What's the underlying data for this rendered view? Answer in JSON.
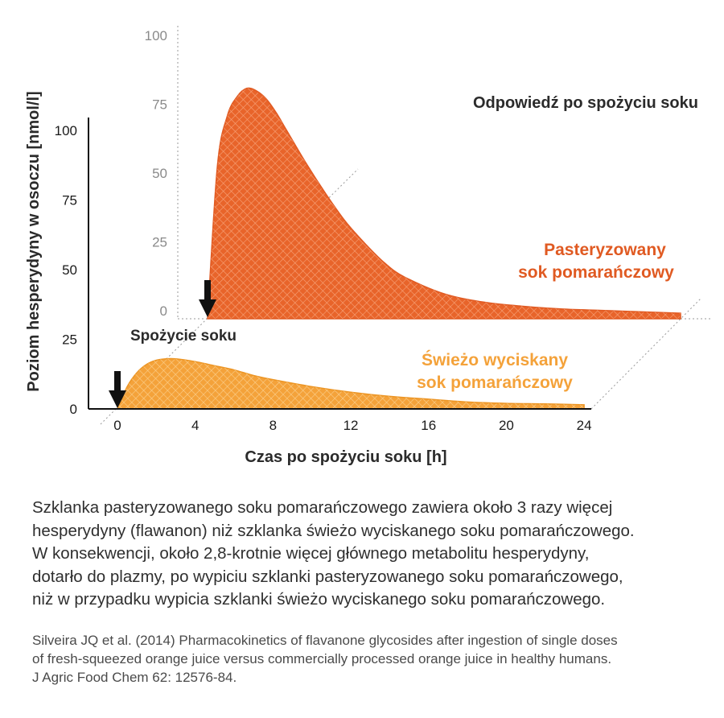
{
  "chart_data": {
    "type": "area",
    "title": "Odpowiedź po spożyciu soku",
    "ylabel": "Poziom hesperydyny w osoczu [nmol/l]",
    "xlabel": "Czas po spożyciu soku [h]",
    "x_ticks": [
      0,
      4,
      8,
      12,
      16,
      20,
      24
    ],
    "y_ticks": [
      0,
      25,
      50,
      75,
      100
    ],
    "xlim": [
      0,
      24
    ],
    "ylim": [
      0,
      100
    ],
    "grid": false,
    "annotations": [
      "Spożycie soku"
    ],
    "series": [
      {
        "name": "Pasteryzowany sok pomarańczowy",
        "color": "#e8642a",
        "x": [
          0,
          0.5,
          1,
          1.5,
          2,
          2.5,
          3,
          3.5,
          4,
          5,
          6,
          7,
          8,
          9,
          10,
          12,
          14,
          16,
          18,
          20,
          22,
          24
        ],
        "y": [
          0,
          55,
          73,
          80,
          83,
          82,
          79,
          74,
          68,
          56,
          45,
          35,
          27,
          20,
          15,
          9,
          6,
          4.5,
          3.5,
          3,
          2.5,
          2
        ]
      },
      {
        "name": "Świeżo wyciskany sok pomarańczowy",
        "color": "#f4a23a",
        "x": [
          0,
          0.5,
          1,
          1.5,
          2,
          2.5,
          3,
          4,
          5,
          6,
          7,
          8,
          10,
          12,
          14,
          16,
          18,
          20,
          22,
          24
        ],
        "y": [
          0,
          8,
          13,
          16,
          17.5,
          18,
          18,
          17,
          15.5,
          14,
          12,
          10.5,
          8,
          6,
          4.5,
          3.5,
          2.5,
          2,
          1.8,
          1.5
        ]
      }
    ]
  },
  "labels": {
    "back_series_line1": "Pasteryzowany",
    "back_series_line2": "sok pomarańczowy",
    "front_series_line1": "Świeżo wyciskany",
    "front_series_line2": "sok pomarańczowy"
  },
  "description": [
    "Szklanka pasteryzowanego soku pomarańczowego zawiera około 3 razy więcej",
    "hesperydyny (flawanon) niż szklanka świeżo wyciskanego soku pomarańczowego.",
    "W konsekwencji, około 2,8-krotnie więcej głównego metabolitu hesperydyny,",
    "dotarło do plazmy, po wypiciu szklanki pasteryzowanego soku pomarańczowego,",
    "niż w przypadku wypicia szklanki świeżo wyciskanego soku pomarańczowego."
  ],
  "citation": [
    "Silveira JQ et al. (2014) Pharmacokinetics of flavanone glycosides after ingestion of single doses",
    "of fresh-squeezed orange juice versus commercially processed orange juice in healthy humans.",
    "J Agric Food Chem 62: 12576-84."
  ]
}
